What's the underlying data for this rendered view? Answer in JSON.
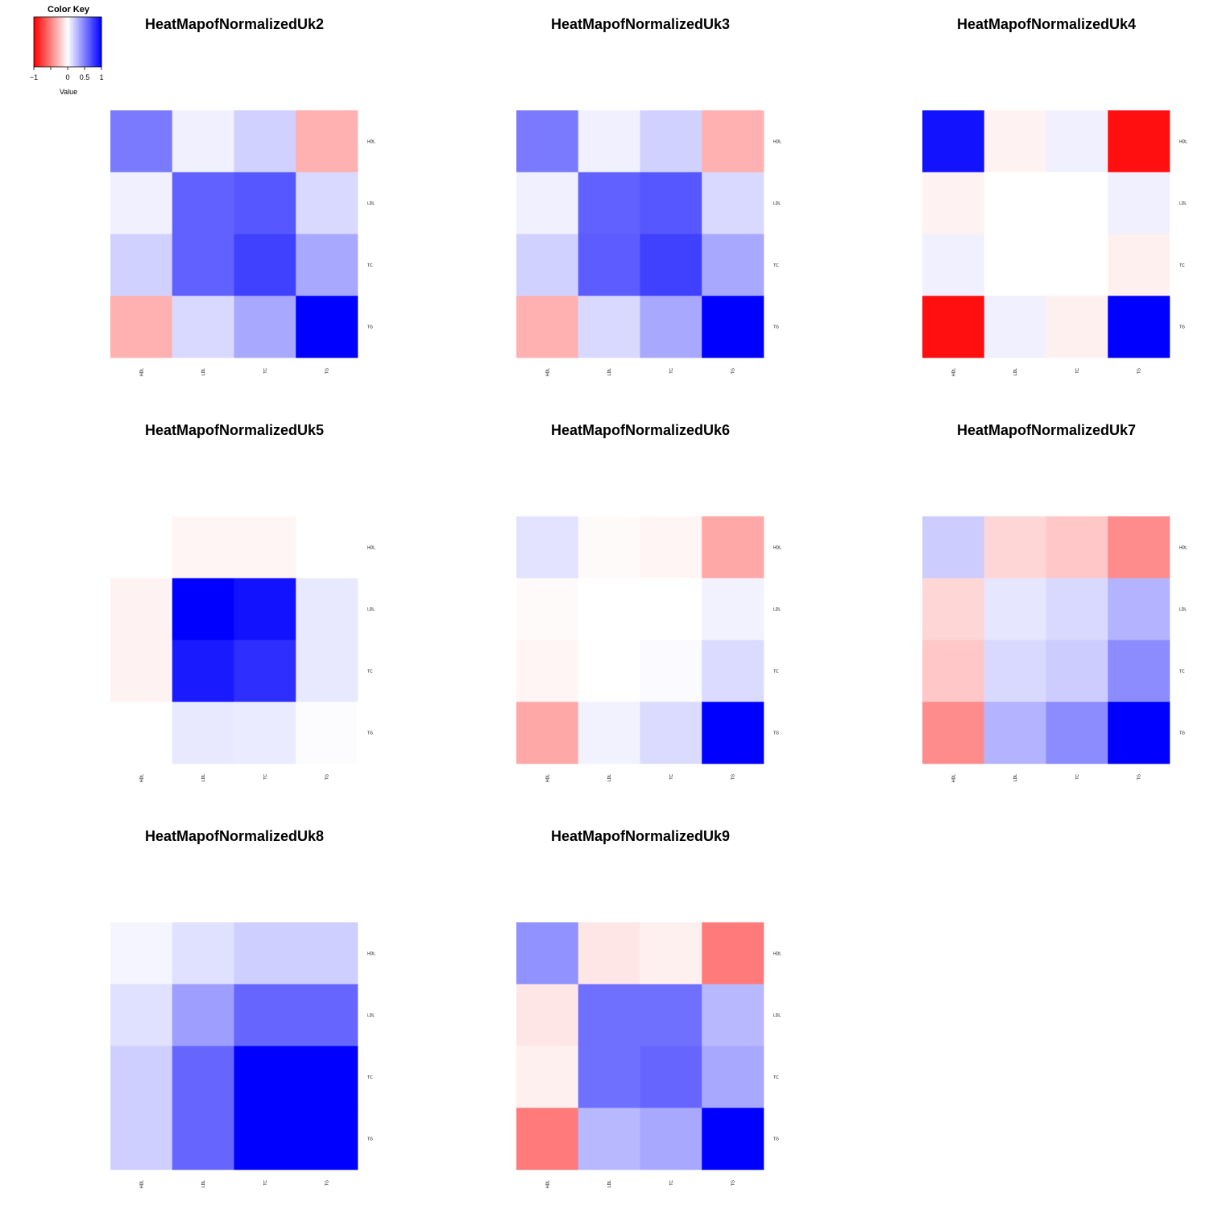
{
  "colors": {
    "low": "#ff0000",
    "mid": "#ffffff",
    "high": "#0000ff"
  },
  "color_key": {
    "title": "Color Key",
    "xlabel": "Value",
    "ticks": [
      {
        "value": -1,
        "label": "−1"
      },
      {
        "value": 0,
        "label": "0"
      },
      {
        "value": 0.5,
        "label": "0.5"
      },
      {
        "value": 1,
        "label": "1"
      }
    ],
    "range": [
      -1,
      1
    ]
  },
  "chart_data": [
    {
      "type": "heatmap",
      "title": "HeatMapofNormalizedUk2",
      "rows": [
        "HDL",
        "LDL",
        "TC",
        "TG"
      ],
      "cols": [
        "HDL",
        "LDL",
        "TC",
        "TG"
      ],
      "values": [
        [
          0.52,
          0.06,
          0.18,
          -0.31
        ],
        [
          0.06,
          0.62,
          0.66,
          0.15
        ],
        [
          0.18,
          0.62,
          0.75,
          0.34
        ],
        [
          -0.31,
          0.15,
          0.34,
          1.0
        ]
      ]
    },
    {
      "type": "heatmap",
      "title": "HeatMapofNormalizedUk3",
      "rows": [
        "HDL",
        "LDL",
        "TC",
        "TG"
      ],
      "cols": [
        "HDL",
        "LDL",
        "TC",
        "TG"
      ],
      "values": [
        [
          0.52,
          0.06,
          0.18,
          -0.31
        ],
        [
          0.06,
          0.62,
          0.66,
          0.15
        ],
        [
          0.18,
          0.64,
          0.75,
          0.34
        ],
        [
          -0.31,
          0.15,
          0.34,
          1.0
        ]
      ]
    },
    {
      "type": "heatmap",
      "title": "HeatMapofNormalizedUk4",
      "rows": [
        "HDL",
        "LDL",
        "TC",
        "TG"
      ],
      "cols": [
        "HDL",
        "LDL",
        "TC",
        "TG"
      ],
      "values": [
        [
          0.93,
          -0.05,
          0.06,
          -0.94
        ],
        [
          -0.05,
          0.0,
          0.0,
          0.06
        ],
        [
          0.06,
          0.0,
          0.0,
          -0.06
        ],
        [
          -0.94,
          0.06,
          -0.06,
          1.0
        ]
      ]
    },
    {
      "type": "heatmap",
      "title": "HeatMapofNormalizedUk5",
      "rows": [
        "HDL",
        "LDL",
        "TC",
        "TG"
      ],
      "cols": [
        "HDL",
        "LDL",
        "TC",
        "TG"
      ],
      "values": [
        [
          0.0,
          -0.04,
          -0.04,
          0.0
        ],
        [
          -0.05,
          1.0,
          0.93,
          0.09
        ],
        [
          -0.05,
          0.9,
          0.82,
          0.09
        ],
        [
          0.0,
          0.09,
          0.08,
          0.01
        ]
      ]
    },
    {
      "type": "heatmap",
      "title": "HeatMapofNormalizedUk6",
      "rows": [
        "HDL",
        "LDL",
        "TC",
        "TG"
      ],
      "cols": [
        "HDL",
        "LDL",
        "TC",
        "TG"
      ],
      "values": [
        [
          0.11,
          -0.02,
          -0.04,
          -0.34
        ],
        [
          -0.02,
          0.0,
          0.0,
          0.05
        ],
        [
          -0.04,
          0.0,
          0.02,
          0.14
        ],
        [
          -0.34,
          0.05,
          0.14,
          1.0
        ]
      ]
    },
    {
      "type": "heatmap",
      "title": "HeatMapofNormalizedUk7",
      "rows": [
        "HDL",
        "LDL",
        "TC",
        "TG"
      ],
      "cols": [
        "HDL",
        "LDL",
        "TC",
        "TG"
      ],
      "values": [
        [
          0.2,
          -0.16,
          -0.22,
          -0.45
        ],
        [
          -0.16,
          0.1,
          0.15,
          0.3
        ],
        [
          -0.22,
          0.15,
          0.2,
          0.45
        ],
        [
          -0.45,
          0.3,
          0.45,
          1.0
        ]
      ]
    },
    {
      "type": "heatmap",
      "title": "HeatMapofNormalizedUk8",
      "rows": [
        "HDL",
        "LDL",
        "TC",
        "TG"
      ],
      "cols": [
        "HDL",
        "LDL",
        "TC",
        "TG"
      ],
      "values": [
        [
          0.04,
          0.12,
          0.19,
          0.19
        ],
        [
          0.12,
          0.38,
          0.6,
          0.6
        ],
        [
          0.19,
          0.6,
          1.0,
          1.0
        ],
        [
          0.19,
          0.6,
          1.0,
          1.0
        ]
      ]
    },
    {
      "type": "heatmap",
      "title": "HeatMapofNormalizedUk9",
      "rows": [
        "HDL",
        "LDL",
        "TC",
        "TG"
      ],
      "cols": [
        "HDL",
        "LDL",
        "TC",
        "TG"
      ],
      "values": [
        [
          0.43,
          -0.1,
          -0.06,
          -0.52
        ],
        [
          -0.1,
          0.56,
          0.56,
          0.28
        ],
        [
          -0.06,
          0.56,
          0.6,
          0.34
        ],
        [
          -0.52,
          0.28,
          0.34,
          1.0
        ]
      ]
    }
  ]
}
